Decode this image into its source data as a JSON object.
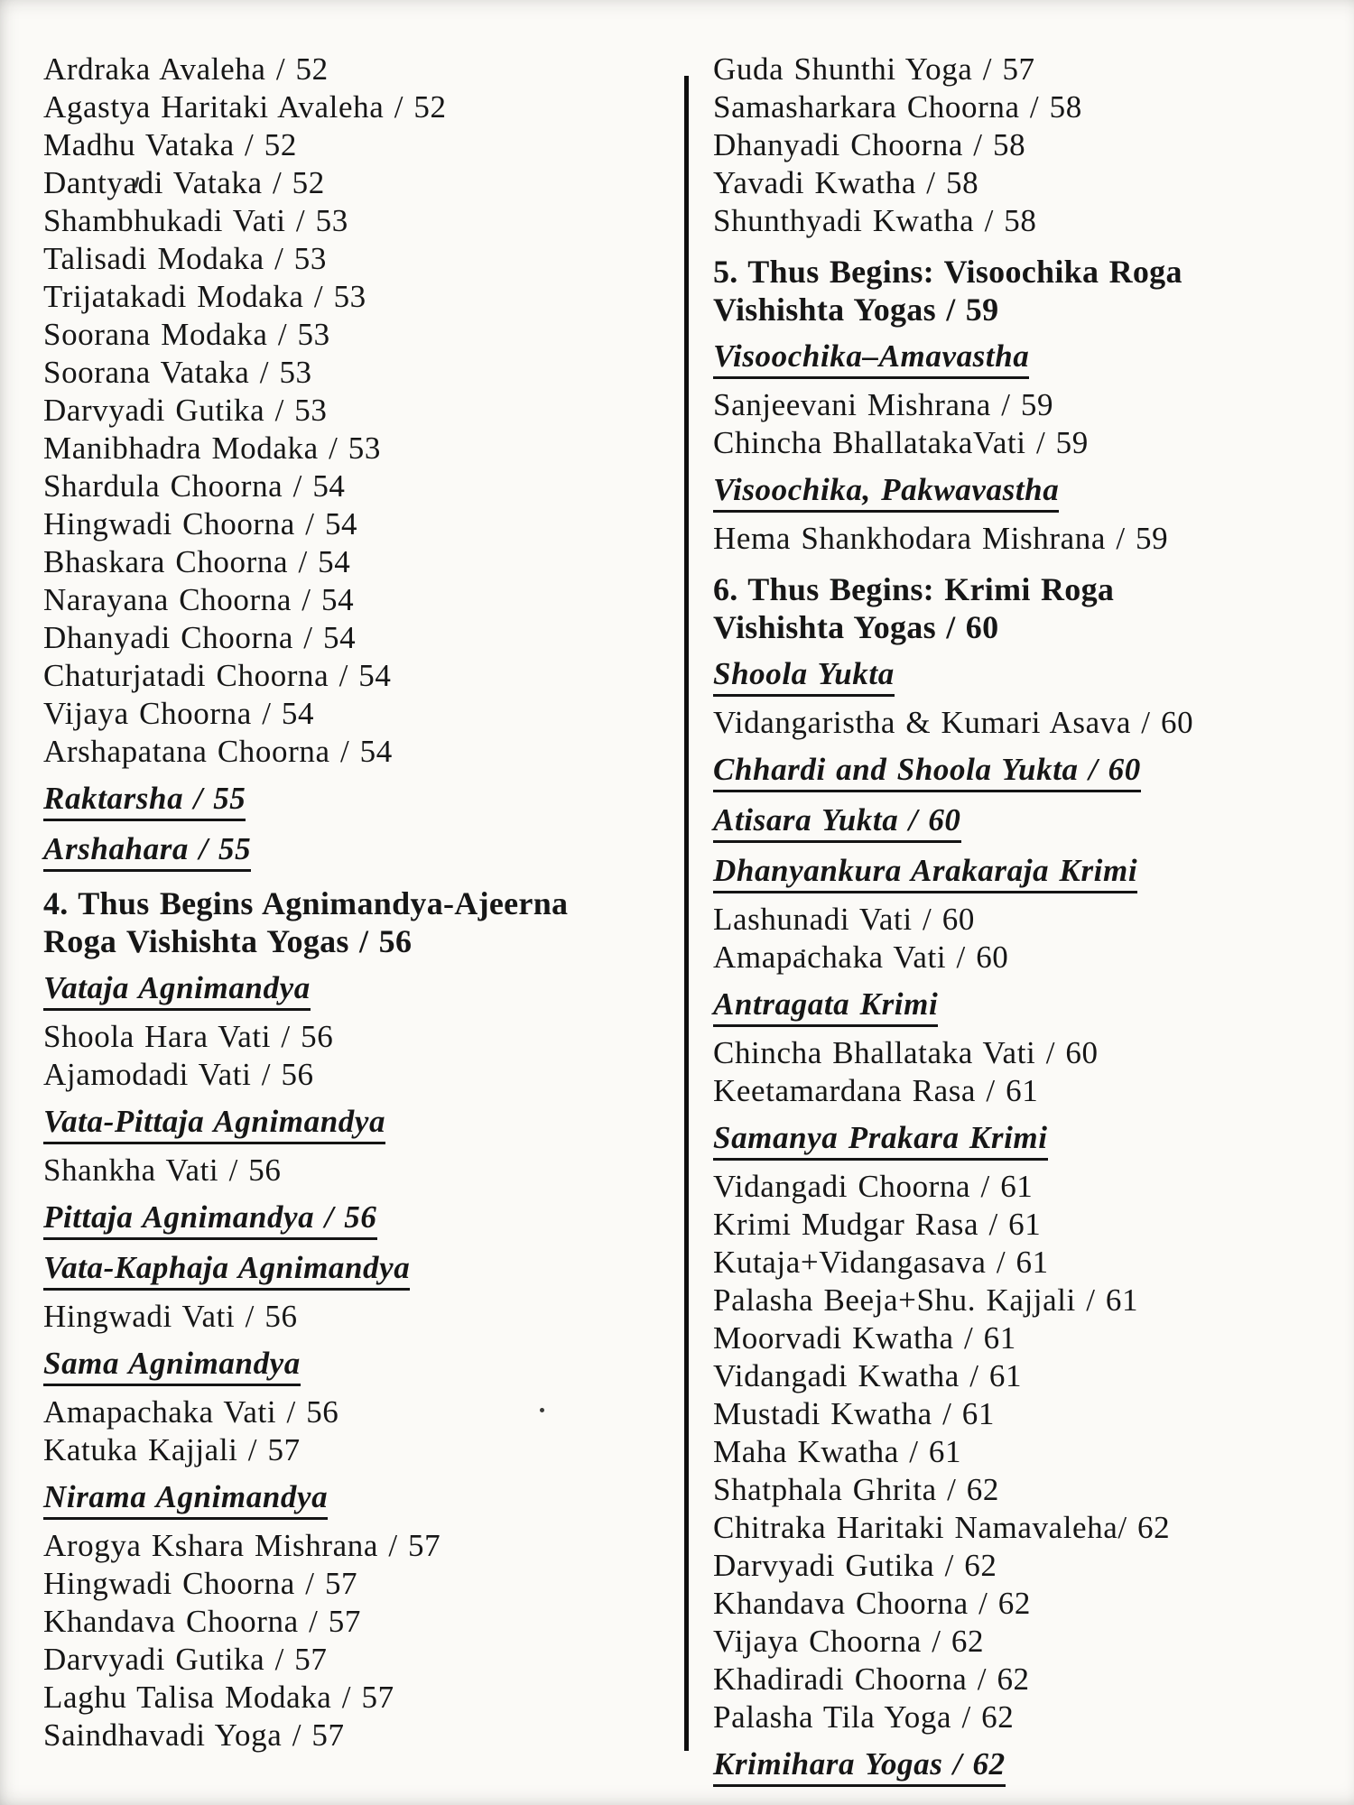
{
  "document_kind": "book-table-of-contents-scan",
  "colors": {
    "paper": "#fbfaf7",
    "ink": "#161616",
    "divider": "#0e0e0e"
  },
  "columns": [
    {
      "name": "left",
      "items": [
        {
          "type": "entry",
          "text": "Ardraka Avaleha / 52"
        },
        {
          "type": "entry",
          "text": "Agastya Haritaki Avaleha / 52"
        },
        {
          "type": "entry",
          "text": "Madhu Vataka / 52"
        },
        {
          "type": "entry",
          "text": "Dantyadi Vataka / 52"
        },
        {
          "type": "entry",
          "text": "Shambhukadi Vati / 53"
        },
        {
          "type": "entry",
          "text": "Talisadi Modaka / 53"
        },
        {
          "type": "entry",
          "text": "Trijatakadi Modaka / 53"
        },
        {
          "type": "entry",
          "text": "Soorana Modaka / 53"
        },
        {
          "type": "entry",
          "text": "Soorana Vataka / 53"
        },
        {
          "type": "entry",
          "text": "Darvyadi Gutika / 53"
        },
        {
          "type": "entry",
          "text": "Manibhadra Modaka / 53"
        },
        {
          "type": "entry",
          "text": "Shardula Choorna / 54"
        },
        {
          "type": "entry",
          "text": "Hingwadi Choorna / 54"
        },
        {
          "type": "entry",
          "text": "Bhaskara Choorna / 54"
        },
        {
          "type": "entry",
          "text": "Narayana Choorna / 54"
        },
        {
          "type": "entry",
          "text": "Dhanyadi Choorna / 54"
        },
        {
          "type": "entry",
          "text": "Chaturjatadi Choorna / 54"
        },
        {
          "type": "entry",
          "text": "Vijaya Choorna / 54"
        },
        {
          "type": "entry",
          "text": "Arshapatana Choorna / 54"
        },
        {
          "type": "subheading",
          "text": "Raktarsha / 55"
        },
        {
          "type": "subheading",
          "text": "Arshahara / 55"
        },
        {
          "type": "chapter",
          "text": "4. Thus Begins Agnimandya-Ajeerna"
        },
        {
          "type": "chapter_cont",
          "text": "Roga Vishishta Yogas / 56"
        },
        {
          "type": "subheading",
          "text": "Vataja Agnimandya"
        },
        {
          "type": "entry",
          "text": "Shoola Hara Vati / 56"
        },
        {
          "type": "entry",
          "text": "Ajamodadi Vati / 56"
        },
        {
          "type": "subheading",
          "text": "Vata-Pittaja Agnimandya"
        },
        {
          "type": "entry",
          "text": "Shankha Vati / 56"
        },
        {
          "type": "subheading",
          "text": "Pittaja Agnimandya / 56"
        },
        {
          "type": "subheading",
          "text": "Vata-Kaphaja Agnimandya"
        },
        {
          "type": "entry",
          "text": "Hingwadi Vati / 56"
        },
        {
          "type": "subheading",
          "text": "Sama Agnimandya"
        },
        {
          "type": "entry",
          "text": "Amapachaka Vati / 56"
        },
        {
          "type": "entry",
          "text": "Katuka Kajjali / 57"
        },
        {
          "type": "subheading",
          "text": "Nirama Agnimandya"
        },
        {
          "type": "entry",
          "text": "Arogya Kshara Mishrana / 57"
        },
        {
          "type": "entry",
          "text": "Hingwadi Choorna / 57"
        },
        {
          "type": "entry",
          "text": "Khandava Choorna / 57"
        },
        {
          "type": "entry",
          "text": "Darvyadi Gutika / 57"
        },
        {
          "type": "entry",
          "text": "Laghu Talisa Modaka / 57"
        },
        {
          "type": "entry",
          "text": "Saindhavadi Yoga / 57"
        }
      ]
    },
    {
      "name": "right",
      "items": [
        {
          "type": "entry",
          "text": "Guda Shunthi Yoga / 57"
        },
        {
          "type": "entry",
          "text": "Samasharkara Choorna / 58"
        },
        {
          "type": "entry",
          "text": "Dhanyadi Choorna / 58"
        },
        {
          "type": "entry",
          "text": "Yavadi Kwatha / 58"
        },
        {
          "type": "entry",
          "text": "Shunthyadi Kwatha / 58"
        },
        {
          "type": "chapter",
          "text": "5. Thus Begins: Visoochika Roga"
        },
        {
          "type": "chapter_cont",
          "text": "Vishishta Yogas / 59"
        },
        {
          "type": "subheading",
          "text": "Visoochika–Amavastha"
        },
        {
          "type": "entry",
          "text": "Sanjeevani Mishrana / 59"
        },
        {
          "type": "entry",
          "text": "Chincha BhallatakaVati / 59"
        },
        {
          "type": "subheading",
          "text": "Visoochika, Pakwavastha"
        },
        {
          "type": "entry",
          "text": "Hema Shankhodara Mishrana / 59"
        },
        {
          "type": "chapter",
          "text": "6. Thus Begins: Krimi Roga"
        },
        {
          "type": "chapter_cont",
          "text": "Vishishta Yogas / 60"
        },
        {
          "type": "subheading",
          "text": "Shoola Yukta"
        },
        {
          "type": "entry",
          "text": "Vidangaristha & Kumari Asava / 60"
        },
        {
          "type": "subheading",
          "text": "Chhardi and Shoola Yukta / 60"
        },
        {
          "type": "subheading",
          "text": "Atisara Yukta / 60"
        },
        {
          "type": "subheading",
          "text": "Dhanyankura Arakaraja Krimi"
        },
        {
          "type": "entry",
          "text": "Lashunadi Vati / 60"
        },
        {
          "type": "entry",
          "text": "Amapachaka Vati / 60"
        },
        {
          "type": "subheading",
          "text": "Antragata Krimi"
        },
        {
          "type": "entry",
          "text": "Chincha Bhallataka Vati / 60"
        },
        {
          "type": "entry",
          "text": "Keetamardana Rasa / 61"
        },
        {
          "type": "subheading",
          "text": "Samanya Prakara Krimi"
        },
        {
          "type": "entry",
          "text": "Vidangadi Choorna / 61"
        },
        {
          "type": "entry",
          "text": "Krimi Mudgar Rasa / 61"
        },
        {
          "type": "entry",
          "text": "Kutaja+Vidangasava / 61"
        },
        {
          "type": "entry",
          "text": "Palasha Beeja+Shu. Kajjali / 61"
        },
        {
          "type": "entry",
          "text": "Moorvadi Kwatha / 61"
        },
        {
          "type": "entry",
          "text": "Vidangadi Kwatha / 61"
        },
        {
          "type": "entry",
          "text": "Mustadi Kwatha / 61"
        },
        {
          "type": "entry",
          "text": "Maha Kwatha / 61"
        },
        {
          "type": "entry",
          "text": "Shatphala Ghrita / 62"
        },
        {
          "type": "entry",
          "text": "Chitraka Haritaki Namavaleha/ 62"
        },
        {
          "type": "entry",
          "text": "Darvyadi Gutika / 62"
        },
        {
          "type": "entry",
          "text": "Khandava Choorna / 62"
        },
        {
          "type": "entry",
          "text": "Vijaya Choorna / 62"
        },
        {
          "type": "entry",
          "text": "Khadiradi Choorna / 62"
        },
        {
          "type": "entry",
          "text": "Palasha Tila Yoga / 62"
        },
        {
          "type": "subheading",
          "text": "Krimihara Yogas / 62"
        }
      ]
    }
  ]
}
